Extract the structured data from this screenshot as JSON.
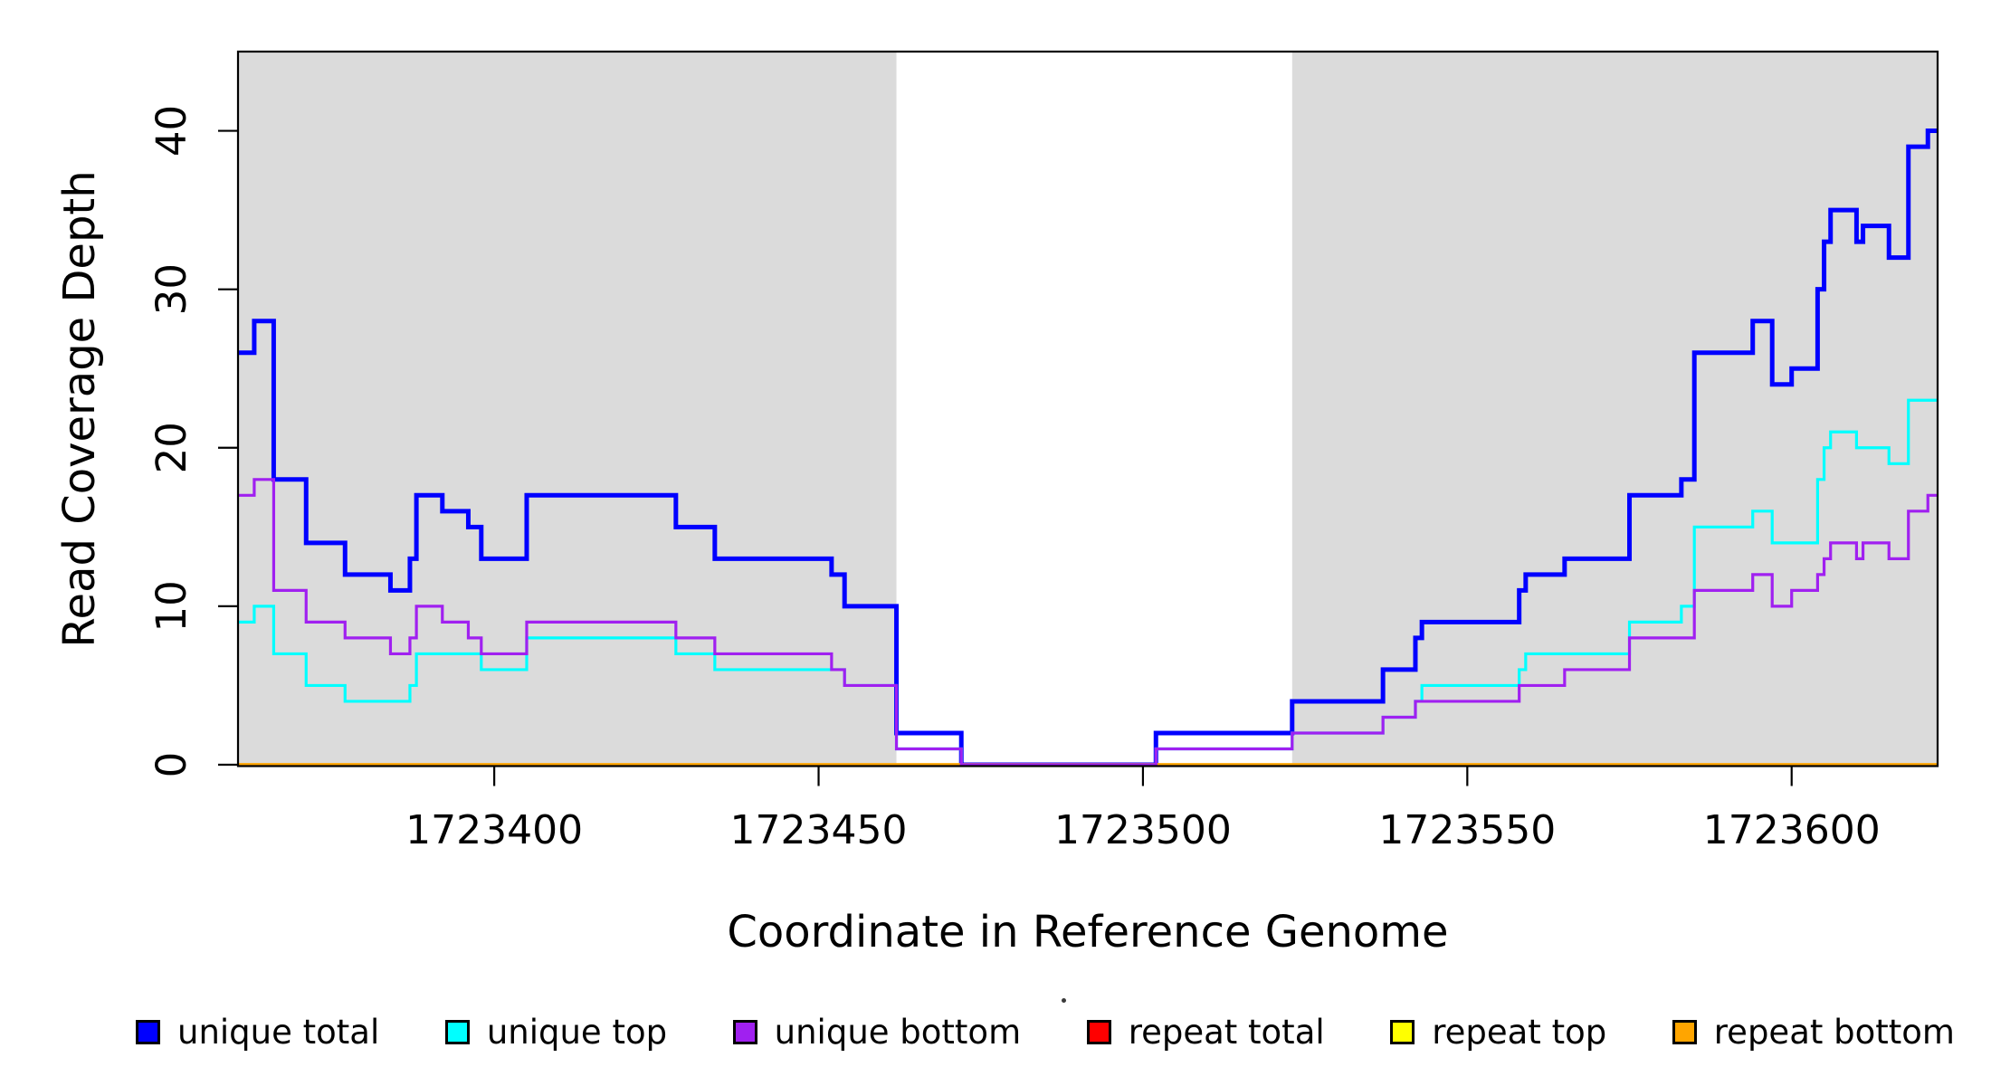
{
  "figure": {
    "background": "#FFFFFF",
    "panel_shade_color": "#DBDBDB",
    "frame_color": "#000000",
    "text_color": "#000000"
  },
  "axes": {
    "x_label": "Coordinate in Reference Genome",
    "y_label": "Read Coverage Depth",
    "x_tick_labels": [
      "1723400",
      "1723450",
      "1723500",
      "1723550",
      "1723600"
    ],
    "y_tick_labels": [
      "0",
      "10",
      "20",
      "30",
      "40"
    ]
  },
  "legend": {
    "items": [
      {
        "label": "unique total",
        "color": "#0000FF"
      },
      {
        "label": "unique top",
        "color": "#00FFFF"
      },
      {
        "label": "unique bottom",
        "color": "#A020F0"
      },
      {
        "label": "repeat total",
        "color": "#FF0000"
      },
      {
        "label": "repeat top",
        "color": "#FFFF00"
      },
      {
        "label": "repeat bottom",
        "color": "#FFA500"
      }
    ]
  },
  "chart_data": {
    "type": "step-line",
    "title": "",
    "xlabel": "Coordinate in Reference Genome",
    "ylabel": "Read Coverage Depth",
    "xlim": [
      1723360.5,
      1723622.5
    ],
    "ylim": [
      0,
      45
    ],
    "grid": false,
    "legend_position": "bottom",
    "x_ticks": [
      1723400,
      1723450,
      1723500,
      1723550,
      1723600
    ],
    "y_ticks": [
      0,
      10,
      20,
      30,
      40
    ],
    "shaded_regions": [
      {
        "x0": 1723360.5,
        "x1": 1723462,
        "color": "#DBDBDB"
      },
      {
        "x0": 1723523,
        "x1": 1723622.5,
        "color": "#DBDBDB"
      }
    ],
    "breakpoints": [
      1723360.5,
      1723363,
      1723366,
      1723371,
      1723377,
      1723384,
      1723387,
      1723388,
      1723392,
      1723396,
      1723398,
      1723405,
      1723428,
      1723434,
      1723452,
      1723454,
      1723462,
      1723472,
      1723502,
      1723523,
      1723537,
      1723542,
      1723543,
      1723558,
      1723559,
      1723565,
      1723575,
      1723583,
      1723585,
      1723594,
      1723597,
      1723600,
      1723604,
      1723605,
      1723606,
      1723610,
      1723611,
      1723615,
      1723618,
      1723621,
      1723622.5
    ],
    "series": [
      {
        "name": "unique total",
        "color": "#0000FF",
        "line_width": 5,
        "values": [
          26,
          28,
          18,
          14,
          12,
          11,
          13,
          17,
          16,
          15,
          13,
          17,
          15,
          13,
          12,
          10,
          2,
          0,
          2,
          4,
          6,
          8,
          9,
          11,
          12,
          13,
          17,
          18,
          26,
          28,
          24,
          25,
          30,
          33,
          35,
          33,
          34,
          32,
          39,
          40
        ]
      },
      {
        "name": "unique top",
        "color": "#00FFFF",
        "line_width": 3.2,
        "values": [
          9,
          10,
          7,
          5,
          4,
          4,
          5,
          7,
          7,
          7,
          6,
          8,
          7,
          6,
          6,
          5,
          1,
          0,
          1,
          2,
          3,
          4,
          5,
          6,
          7,
          7,
          9,
          10,
          15,
          16,
          14,
          14,
          18,
          20,
          21,
          20,
          20,
          19,
          23,
          23
        ]
      },
      {
        "name": "unique bottom",
        "color": "#A020F0",
        "line_width": 3.2,
        "values": [
          17,
          18,
          11,
          9,
          8,
          7,
          8,
          10,
          9,
          8,
          7,
          9,
          8,
          7,
          6,
          5,
          1,
          0,
          1,
          2,
          3,
          4,
          4,
          5,
          5,
          6,
          8,
          8,
          11,
          12,
          10,
          11,
          12,
          13,
          14,
          13,
          14,
          13,
          16,
          17
        ]
      },
      {
        "name": "repeat total",
        "color": "#FF0000",
        "line_width": 3.2,
        "values": [
          0,
          0,
          0,
          0,
          0,
          0,
          0,
          0,
          0,
          0,
          0,
          0,
          0,
          0,
          0,
          0,
          0,
          0,
          0,
          0,
          0,
          0,
          0,
          0,
          0,
          0,
          0,
          0,
          0,
          0,
          0,
          0,
          0,
          0,
          0,
          0,
          0,
          0,
          0,
          0
        ]
      },
      {
        "name": "repeat top",
        "color": "#FFFF00",
        "line_width": 3.2,
        "values": [
          0,
          0,
          0,
          0,
          0,
          0,
          0,
          0,
          0,
          0,
          0,
          0,
          0,
          0,
          0,
          0,
          0,
          0,
          0,
          0,
          0,
          0,
          0,
          0,
          0,
          0,
          0,
          0,
          0,
          0,
          0,
          0,
          0,
          0,
          0,
          0,
          0,
          0,
          0,
          0
        ]
      },
      {
        "name": "repeat bottom",
        "color": "#FFA500",
        "line_width": 3.5,
        "values": [
          0,
          0,
          0,
          0,
          0,
          0,
          0,
          0,
          0,
          0,
          0,
          0,
          0,
          0,
          0,
          0,
          0,
          0,
          0,
          0,
          0,
          0,
          0,
          0,
          0,
          0,
          0,
          0,
          0,
          0,
          0,
          0,
          0,
          0,
          0,
          0,
          0,
          0,
          0,
          0
        ]
      }
    ]
  }
}
